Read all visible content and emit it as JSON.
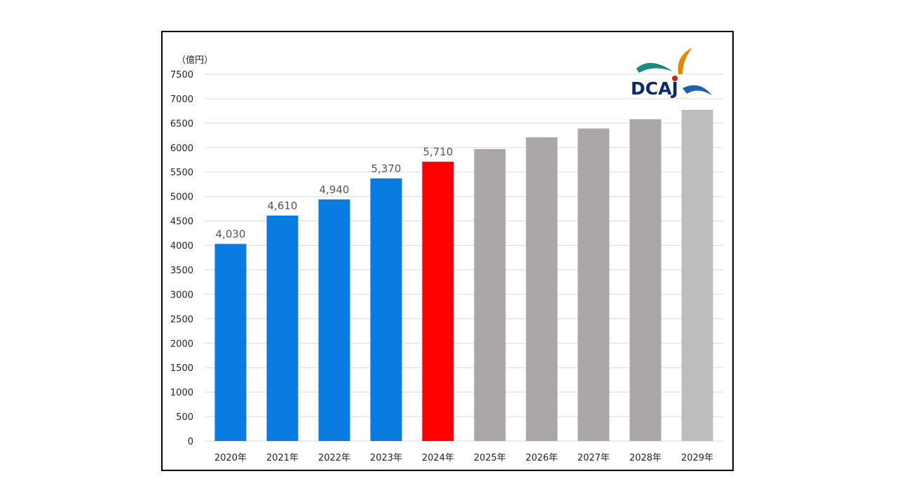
{
  "chart_data": {
    "type": "bar",
    "unit_label": "（億円）",
    "categories": [
      "2020年",
      "2021年",
      "2022年",
      "2023年",
      "2024年",
      "2025年",
      "2026年",
      "2027年",
      "2028年",
      "2029年"
    ],
    "values": [
      4030,
      4610,
      4940,
      5370,
      5710,
      5970,
      6210,
      6390,
      6580,
      6770
    ],
    "data_labels": [
      "4,030",
      "4,610",
      "4,940",
      "5,370",
      "5,710",
      "",
      "",
      "",
      "",
      ""
    ],
    "bar_colors": [
      "#0a7be0",
      "#0a7be0",
      "#0a7be0",
      "#0a7be0",
      "#ff0000",
      "#aba7a6",
      "#aba7a6",
      "#aba7a6",
      "#aba7a6",
      "#bdbdbd"
    ],
    "ylim": [
      0,
      7500
    ],
    "yticks": [
      0,
      500,
      1000,
      1500,
      2000,
      2500,
      3000,
      3500,
      4000,
      4500,
      5000,
      5500,
      6000,
      6500,
      7000,
      7500
    ],
    "grid": true,
    "legend": "none"
  },
  "logo": {
    "text": "DCAJ",
    "colors": {
      "teal": "#1a8a7a",
      "blue": "#1f5fb0",
      "orange": "#e08a00",
      "red": "#d11a1a",
      "navy": "#0a2a6e"
    }
  }
}
